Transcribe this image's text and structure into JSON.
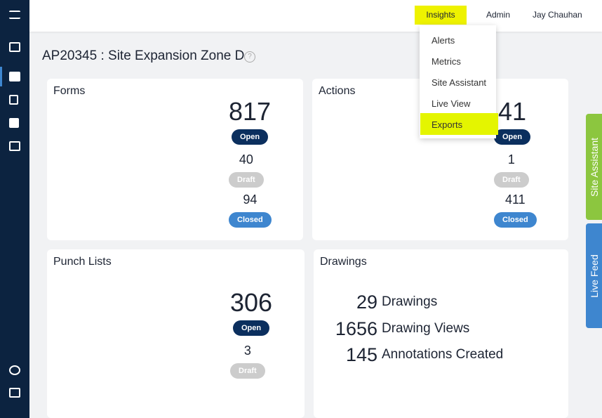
{
  "header": {
    "nav": [
      "Insights",
      "Admin",
      "Jay Chauhan"
    ]
  },
  "menu": [
    "Alerts",
    "Metrics",
    "Site Assistant",
    "Live View",
    "Exports"
  ],
  "page_title": "AP20345 : Site Expansion Zone D",
  "cards": [
    {
      "title": "Forms",
      "start_angle": 75,
      "stats": [
        {
          "value": 817,
          "label": "Open",
          "color": "#0b2f5e"
        },
        {
          "value": 40,
          "label": "Draft",
          "color": "#cccccc"
        },
        {
          "value": 94,
          "label": "Closed",
          "color": "#3e86cf"
        }
      ]
    },
    {
      "title": "Actions",
      "start_angle": 58,
      "stats": [
        {
          "value": 41,
          "label": "Open",
          "color": "#0b2f5e"
        },
        {
          "value": 1,
          "label": "Draft",
          "color": "#cccccc"
        },
        {
          "value": 411,
          "label": "Closed",
          "color": "#3e86cf"
        }
      ]
    },
    {
      "title": "Punch Lists",
      "start_angle": 90,
      "stats": [
        {
          "value": 306,
          "label": "Open",
          "color": "#0b2f5e"
        },
        {
          "value": 3,
          "label": "Draft",
          "color": "#cccccc"
        }
      ]
    }
  ],
  "drawings": {
    "title": "Drawings",
    "rows": [
      {
        "value": 29,
        "label": "Drawings"
      },
      {
        "value": 1656,
        "label": "Drawing Views"
      },
      {
        "value": 145,
        "label": "Annotations Created"
      }
    ]
  },
  "tabs": [
    "Site Assistant",
    "Live Feed"
  ]
}
